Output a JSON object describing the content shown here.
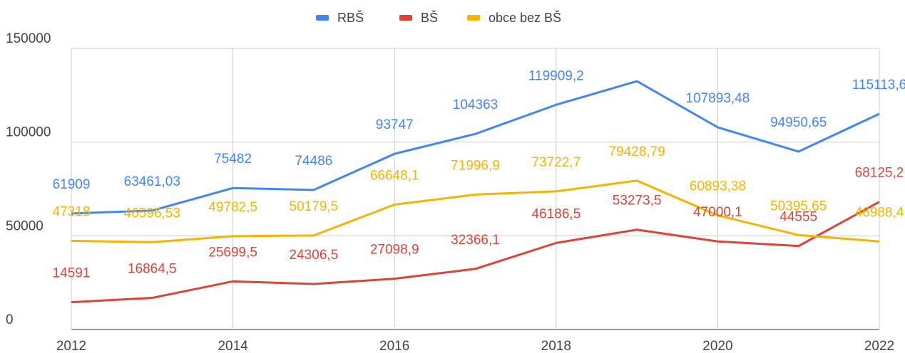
{
  "chart_data": {
    "type": "line",
    "x": [
      2012,
      2013,
      2014,
      2015,
      2016,
      2017,
      2018,
      2019,
      2020,
      2021,
      2022
    ],
    "xlim": [
      2012,
      2022
    ],
    "xticks": [
      2012,
      2014,
      2016,
      2018,
      2020,
      2022
    ],
    "ylim": [
      0,
      150000
    ],
    "yticks": [
      0,
      50000,
      100000,
      150000
    ],
    "grid": true,
    "legend": "top",
    "series": [
      {
        "name": "RBŠ",
        "color": "#4285f4",
        "values": [
          61909,
          63461.03,
          75482,
          74486,
          93747,
          104363,
          119909.2,
          132500,
          107893.48,
          94950.65,
          115113.6
        ],
        "value_labels": [
          "61909",
          "63461,03",
          "75482",
          "74486",
          "93747",
          "104363",
          "119909,2",
          null,
          "107893,48",
          "94950,65",
          "115113,6"
        ]
      },
      {
        "name": "BŠ",
        "color": "#db4437",
        "values": [
          14591,
          16864.5,
          25699.5,
          24306.5,
          27098.9,
          32366.1,
          46186.5,
          53273.5,
          47000.1,
          44555,
          68125.2
        ],
        "value_labels": [
          "14591",
          "16864,5",
          "25699,5",
          "24306,5",
          "27098,9",
          "32366,1",
          "46186,5",
          "53273,5",
          "47000,1",
          "44555",
          "68125,2"
        ]
      },
      {
        "name": "obce bez BŠ",
        "color": "#f4b400",
        "values": [
          47318,
          46596.53,
          49782.5,
          50179.5,
          66648.1,
          71996.9,
          73722.7,
          79428.79,
          60893.38,
          50395.65,
          46988.4
        ],
        "value_labels": [
          "47318",
          "46596,53",
          "49782,5",
          "50179,5",
          "66648,1",
          "71996,9",
          "73722,7",
          "79428,79",
          "60893,38",
          "50395,65",
          "46988,4"
        ]
      }
    ]
  }
}
